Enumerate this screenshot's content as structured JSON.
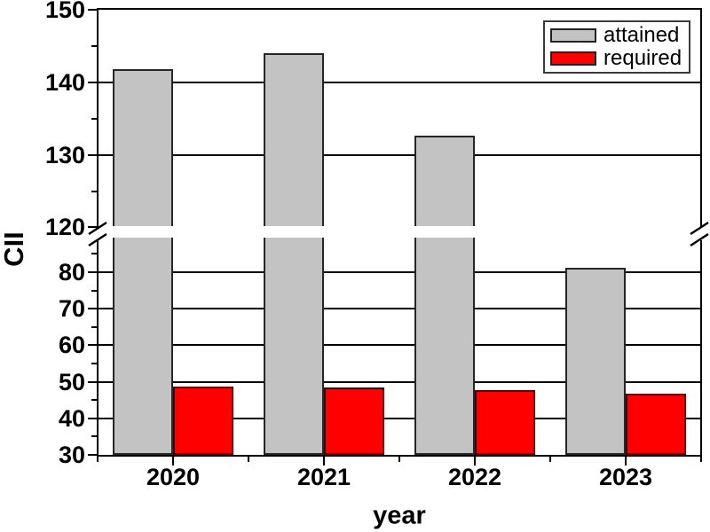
{
  "chart_data": {
    "type": "bar",
    "title": "",
    "xlabel": "year",
    "ylabel": "CII",
    "categories": [
      "2020",
      "2021",
      "2022",
      "2023"
    ],
    "series": [
      {
        "name": "attained",
        "color": "#c3c3c3",
        "border_color": "#262626",
        "values": [
          141.8,
          144.0,
          132.6,
          81.3
        ]
      },
      {
        "name": "required",
        "color": "#ff0000",
        "border_color": "#4f0000",
        "values": [
          48.7,
          48.4,
          47.8,
          46.8
        ]
      }
    ],
    "legend": {
      "position": "top-right",
      "entries": [
        "attained",
        "required"
      ]
    },
    "y_axis": {
      "broken": true,
      "lower": {
        "min": 30,
        "max": 90,
        "major_ticks": [
          30,
          40,
          50,
          60,
          70,
          80
        ],
        "minor_ticks": [
          35,
          45,
          55,
          65,
          75,
          85
        ]
      },
      "upper": {
        "min": 120,
        "max": 150,
        "major_ticks": [
          120,
          130,
          140,
          150
        ],
        "minor_ticks": [
          125,
          135,
          145
        ]
      },
      "gridlines": [
        40,
        50,
        60,
        70,
        80,
        130,
        140
      ]
    },
    "x_axis": {
      "tick_labels": [
        "2020",
        "2021",
        "2022",
        "2023"
      ]
    },
    "grid": "horizontal-major",
    "colors": {
      "axis": "#000000",
      "grid": "#000000",
      "background": "#ffffff"
    }
  }
}
